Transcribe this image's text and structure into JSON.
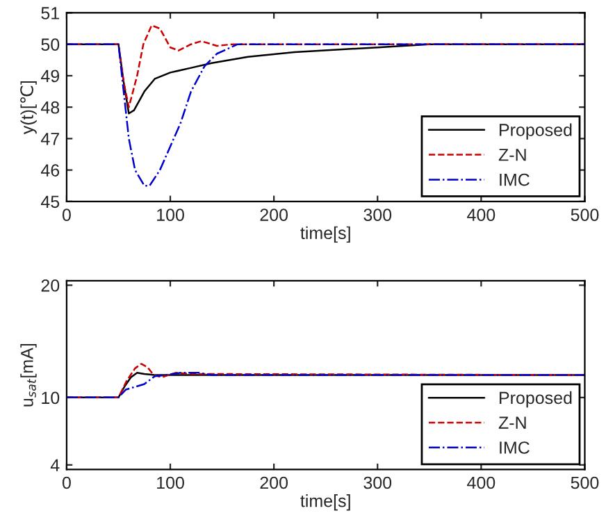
{
  "chart_data": [
    {
      "type": "line",
      "xlabel": "time[s]",
      "ylabel": "y(t)[℃]",
      "xlim": [
        0,
        500
      ],
      "xticks": [
        0,
        100,
        200,
        300,
        400,
        500
      ],
      "ylim": [
        45,
        51
      ],
      "yticks": [
        45,
        46,
        47,
        48,
        49,
        50,
        51
      ],
      "grid": false,
      "legend": "bottom right",
      "series": [
        {
          "name": "Proposed",
          "color": "#000000",
          "line_style": "solid",
          "x": [
            0,
            50,
            55,
            60,
            65,
            75,
            85,
            100,
            120,
            140,
            175,
            220,
            300,
            350,
            500
          ],
          "values": [
            50,
            50,
            48.8,
            47.8,
            47.9,
            48.5,
            48.9,
            49.1,
            49.25,
            49.4,
            49.6,
            49.75,
            49.9,
            50,
            50
          ]
        },
        {
          "name": "Z-N",
          "color": "#cc0000",
          "line_style": "dashed",
          "x": [
            0,
            50,
            55,
            60,
            68,
            74,
            82,
            90,
            100,
            108,
            120,
            130,
            145,
            160,
            500
          ],
          "values": [
            50,
            50,
            48.8,
            48,
            49,
            50,
            50.6,
            50.5,
            49.9,
            49.8,
            50,
            50.1,
            49.95,
            50,
            50
          ]
        },
        {
          "name": "IMC",
          "color": "#0000cc",
          "line_style": "dashdot",
          "x": [
            0,
            50,
            55,
            60,
            66,
            75,
            80,
            90,
            110,
            120,
            133,
            145,
            165,
            500
          ],
          "values": [
            50,
            50,
            48.5,
            47,
            46,
            45.5,
            45.5,
            46,
            47.5,
            48.5,
            49.3,
            49.7,
            50,
            50
          ]
        }
      ]
    },
    {
      "type": "line",
      "xlabel": "time[s]",
      "ylabel": "u$_{sat}$[mA]",
      "xlim": [
        0,
        500
      ],
      "xticks": [
        0,
        100,
        200,
        300,
        400,
        500
      ],
      "ylim": [
        3.6,
        20.4
      ],
      "yticks": [
        4,
        10,
        20
      ],
      "grid": false,
      "legend": "bottom right",
      "series": [
        {
          "name": "Proposed",
          "color": "#000000",
          "line_style": "solid",
          "x": [
            0,
            50,
            56,
            62,
            68,
            75,
            85,
            500
          ],
          "values": [
            10,
            10,
            11,
            11.8,
            12.2,
            12.1,
            12,
            12
          ]
        },
        {
          "name": "Z-N",
          "color": "#cc0000",
          "line_style": "dashed",
          "x": [
            0,
            50,
            58,
            66,
            72,
            78,
            84,
            92,
            98,
            105,
            120,
            500
          ],
          "values": [
            10,
            10,
            11.5,
            12.6,
            13,
            12.7,
            12,
            11.8,
            12,
            12.2,
            12.1,
            12
          ]
        },
        {
          "name": "IMC",
          "color": "#0000cc",
          "line_style": "dashdot",
          "x": [
            0,
            50,
            57,
            75,
            85,
            95,
            110,
            128,
            140,
            500
          ],
          "values": [
            10,
            10,
            10.7,
            11.2,
            11.9,
            12,
            12.2,
            12.2,
            12,
            12
          ]
        }
      ]
    }
  ]
}
